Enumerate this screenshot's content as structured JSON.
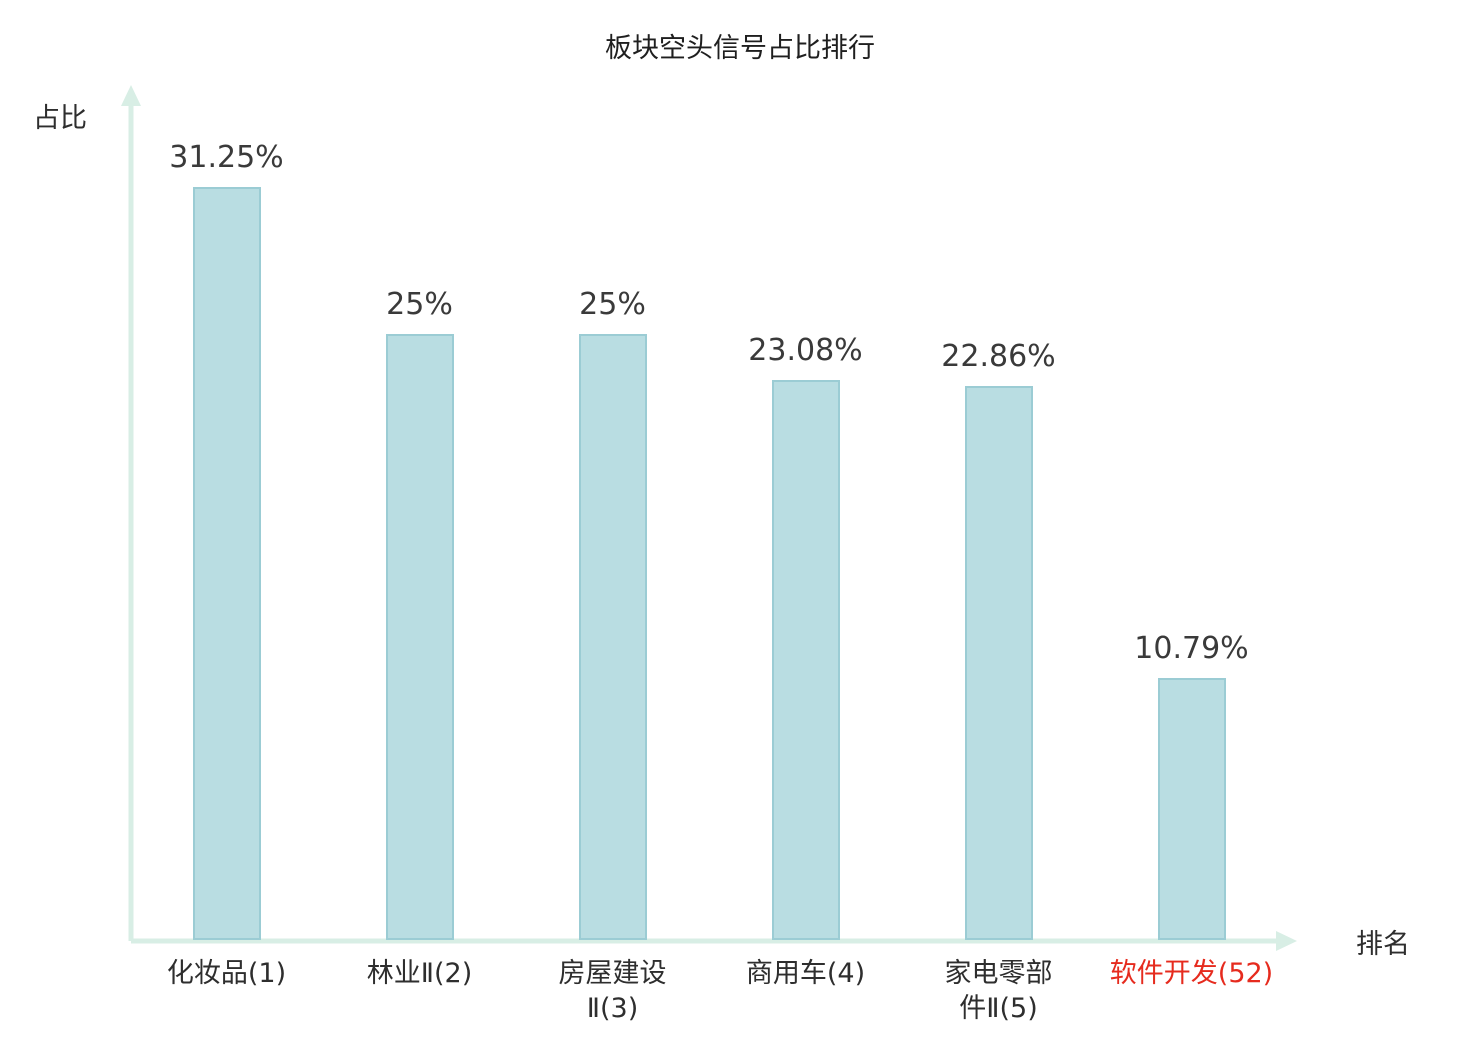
{
  "chart_data": {
    "type": "bar",
    "title": "板块空头信号占比排行",
    "xlabel": "排名",
    "ylabel": "占比",
    "categories": [
      "化妆品(1)",
      "林业Ⅱ(2)",
      "房屋建设Ⅱ(3)",
      "商用车(4)",
      "家电零部件Ⅱ(5)",
      "软件开发(52)"
    ],
    "category_lines": [
      [
        "化妆品(1)"
      ],
      [
        "林业Ⅱ(2)"
      ],
      [
        "房屋建设",
        "Ⅱ(3)"
      ],
      [
        "商用车(4)"
      ],
      [
        "家电零部",
        "件Ⅱ(5)"
      ],
      [
        "软件开发(52)"
      ]
    ],
    "values": [
      31.25,
      25,
      25,
      23.08,
      22.86,
      10.79
    ],
    "value_labels": [
      "31.25%",
      "25%",
      "25%",
      "23.08%",
      "22.86%",
      "10.79%"
    ],
    "highlight_index": 5,
    "highlight_color": "#e62b1e",
    "bar_color": "#b9dde2",
    "bar_border_color": "#9bccd4",
    "axis_color": "#d8eee5",
    "text_color": "#2e2e2e",
    "ylim": [
      0,
      33
    ],
    "grid": false,
    "legend": "none"
  }
}
